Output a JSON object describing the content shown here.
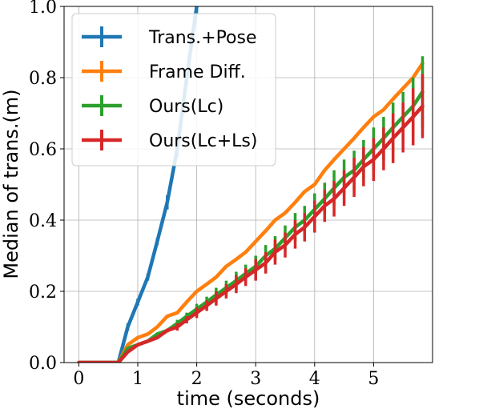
{
  "chart_data": {
    "type": "line",
    "title": "",
    "xlabel": "time (seconds)",
    "ylabel": "Median of trans.(m)",
    "xlim": [
      -0.25,
      6.0
    ],
    "ylim": [
      0.0,
      1.0
    ],
    "xticks": [
      0,
      1,
      2,
      3,
      4,
      5
    ],
    "yticks": [
      0.0,
      0.2,
      0.4,
      0.6,
      0.8,
      1.0
    ],
    "xtick_labels": [
      "0",
      "1",
      "2",
      "3",
      "4",
      "5"
    ],
    "ytick_labels": [
      "0.0",
      "0.2",
      "0.4",
      "0.6",
      "0.8",
      "1.0"
    ],
    "grid": true,
    "legend_position": "top-left",
    "series": [
      {
        "name": "Trans.+Pose",
        "color": "#1f77b4",
        "x": [
          0,
          0.33,
          0.67,
          0.83,
          1.0,
          1.17,
          1.33,
          1.5,
          1.67,
          1.83,
          2.0
        ],
        "y": [
          0.0,
          0.0,
          0.0,
          0.1,
          0.17,
          0.24,
          0.34,
          0.45,
          0.6,
          0.8,
          1.0
        ],
        "err": [
          0,
          0,
          0,
          0.01,
          0.01,
          0.01,
          0.01,
          0.02,
          0.02,
          0.02,
          0.02
        ]
      },
      {
        "name": "Frame Diff.",
        "color": "#ff7f0e",
        "x": [
          0,
          0.33,
          0.67,
          0.83,
          1.0,
          1.17,
          1.33,
          1.5,
          1.67,
          1.83,
          2.0,
          2.17,
          2.33,
          2.5,
          2.67,
          2.83,
          3.0,
          3.17,
          3.33,
          3.5,
          3.67,
          3.83,
          4.0,
          4.17,
          4.33,
          4.5,
          4.67,
          4.83,
          5.0,
          5.17,
          5.33,
          5.5,
          5.67,
          5.83
        ],
        "y": [
          0.0,
          0.0,
          0.0,
          0.05,
          0.07,
          0.08,
          0.1,
          0.13,
          0.14,
          0.17,
          0.2,
          0.22,
          0.24,
          0.27,
          0.29,
          0.31,
          0.34,
          0.37,
          0.4,
          0.42,
          0.45,
          0.48,
          0.5,
          0.54,
          0.57,
          0.6,
          0.63,
          0.66,
          0.69,
          0.71,
          0.74,
          0.77,
          0.8,
          0.84
        ],
        "err": [
          0,
          0,
          0,
          0,
          0,
          0,
          0,
          0,
          0,
          0,
          0,
          0,
          0,
          0,
          0,
          0,
          0,
          0,
          0,
          0,
          0,
          0,
          0,
          0,
          0,
          0,
          0,
          0,
          0,
          0,
          0,
          0,
          0,
          0
        ]
      },
      {
        "name": "Ours(Lc)",
        "color": "#2ca02c",
        "x": [
          0,
          0.33,
          0.67,
          0.83,
          1.0,
          1.17,
          1.33,
          1.5,
          1.67,
          1.83,
          2.0,
          2.17,
          2.33,
          2.5,
          2.67,
          2.83,
          3.0,
          3.17,
          3.33,
          3.5,
          3.67,
          3.83,
          4.0,
          4.17,
          4.33,
          4.5,
          4.67,
          4.83,
          5.0,
          5.17,
          5.33,
          5.5,
          5.67,
          5.83
        ],
        "y": [
          0.0,
          0.0,
          0.0,
          0.04,
          0.05,
          0.06,
          0.08,
          0.09,
          0.11,
          0.13,
          0.15,
          0.17,
          0.19,
          0.21,
          0.23,
          0.25,
          0.27,
          0.3,
          0.32,
          0.35,
          0.38,
          0.4,
          0.43,
          0.46,
          0.49,
          0.52,
          0.54,
          0.57,
          0.6,
          0.63,
          0.66,
          0.69,
          0.72,
          0.76
        ],
        "err": [
          0,
          0,
          0,
          0,
          0,
          0,
          0,
          0.005,
          0.01,
          0.01,
          0.015,
          0.015,
          0.02,
          0.02,
          0.025,
          0.025,
          0.03,
          0.03,
          0.035,
          0.035,
          0.04,
          0.04,
          0.045,
          0.045,
          0.05,
          0.05,
          0.055,
          0.055,
          0.06,
          0.06,
          0.07,
          0.07,
          0.08,
          0.1
        ]
      },
      {
        "name": "Ours(Lc+Ls)",
        "color": "#d62728",
        "x": [
          0,
          0.33,
          0.67,
          0.83,
          1.0,
          1.17,
          1.33,
          1.5,
          1.67,
          1.83,
          2.0,
          2.17,
          2.33,
          2.5,
          2.67,
          2.83,
          3.0,
          3.17,
          3.33,
          3.5,
          3.67,
          3.83,
          4.0,
          4.17,
          4.33,
          4.5,
          4.67,
          4.83,
          5.0,
          5.17,
          5.33,
          5.5,
          5.67,
          5.83
        ],
        "y": [
          0.0,
          0.0,
          0.0,
          0.03,
          0.05,
          0.06,
          0.07,
          0.09,
          0.1,
          0.12,
          0.14,
          0.16,
          0.18,
          0.2,
          0.22,
          0.24,
          0.26,
          0.28,
          0.31,
          0.33,
          0.36,
          0.38,
          0.41,
          0.44,
          0.46,
          0.49,
          0.52,
          0.55,
          0.57,
          0.6,
          0.63,
          0.66,
          0.69,
          0.72
        ],
        "err": [
          0,
          0,
          0,
          0,
          0,
          0,
          0,
          0.005,
          0.01,
          0.01,
          0.015,
          0.015,
          0.02,
          0.02,
          0.025,
          0.025,
          0.03,
          0.03,
          0.035,
          0.035,
          0.04,
          0.04,
          0.045,
          0.045,
          0.05,
          0.05,
          0.055,
          0.055,
          0.06,
          0.06,
          0.07,
          0.07,
          0.08,
          0.09
        ]
      }
    ]
  }
}
